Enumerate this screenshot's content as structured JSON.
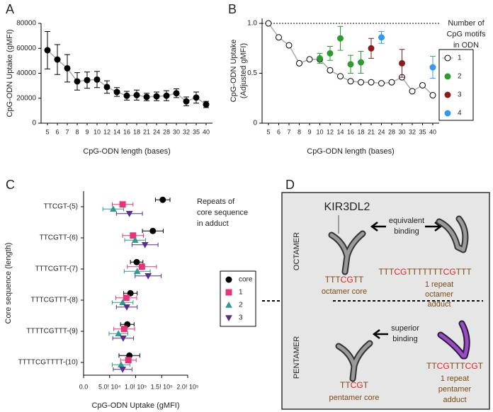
{
  "chart_data": [
    {
      "panel": "A",
      "type": "line",
      "x_label": "CpG-ODN length (bases)",
      "y_label": "CpG-ODN Uptake (gMFI)",
      "categories": [
        "5",
        "6",
        "7",
        "8",
        "9",
        "10",
        "12",
        "14",
        "16",
        "18",
        "21",
        "24",
        "28",
        "30",
        "32",
        "35",
        "40"
      ],
      "values": [
        58500,
        51000,
        44000,
        33500,
        34500,
        35000,
        29000,
        25000,
        22000,
        22500,
        21000,
        21500,
        22000,
        24000,
        17500,
        20500,
        15000
      ],
      "errors": [
        15000,
        12000,
        11000,
        7000,
        6500,
        6500,
        5000,
        3500,
        3500,
        4000,
        3000,
        3500,
        4000,
        3500,
        3500,
        4500,
        2500
      ],
      "color": "#000000",
      "ylim": [
        0,
        80000
      ],
      "yticks": [
        0,
        20000,
        40000,
        60000,
        80000
      ]
    },
    {
      "panel": "B",
      "type": "line",
      "x_label": "CpG-ODN length (bases)",
      "y_label": [
        "CpG-ODN Uptake",
        "(Adjusted gMFI)"
      ],
      "categories": [
        "5",
        "6",
        "7",
        "8",
        "9",
        "10",
        "12",
        "14",
        "16",
        "18",
        "21",
        "24",
        "28",
        "30",
        "32",
        "35",
        "40"
      ],
      "series": [
        {
          "name": "1",
          "color": "#ffffff",
          "line": true,
          "values": [
            1.0,
            0.86,
            0.78,
            0.6,
            0.64,
            0.64,
            0.53,
            0.47,
            0.42,
            0.41,
            0.41,
            0.4,
            0.41,
            0.46,
            0.32,
            0.38,
            0.28
          ]
        },
        {
          "name": "2",
          "color": "#2f9a2f",
          "values": [
            null,
            null,
            null,
            null,
            null,
            0.65,
            0.7,
            0.85,
            0.59,
            0.61,
            null,
            null,
            null,
            null,
            null,
            null,
            null
          ],
          "errors": [
            null,
            null,
            null,
            null,
            null,
            0.05,
            0.07,
            0.12,
            0.09,
            0.11,
            null,
            null,
            null,
            null,
            null,
            null,
            null
          ]
        },
        {
          "name": "3",
          "color": "#8b1a1a",
          "values": [
            null,
            null,
            null,
            null,
            null,
            null,
            null,
            null,
            null,
            null,
            0.75,
            null,
            null,
            0.6,
            null,
            null,
            null
          ],
          "errors": [
            null,
            null,
            null,
            null,
            null,
            null,
            null,
            null,
            null,
            null,
            0.1,
            null,
            null,
            0.14,
            null,
            null,
            null
          ]
        },
        {
          "name": "4",
          "color": "#3399ee",
          "values": [
            null,
            null,
            null,
            null,
            null,
            null,
            null,
            null,
            null,
            null,
            null,
            0.86,
            null,
            null,
            null,
            null,
            0.56
          ],
          "errors": [
            null,
            null,
            null,
            null,
            null,
            null,
            null,
            null,
            null,
            null,
            null,
            0.06,
            null,
            null,
            null,
            null,
            0.11
          ]
        }
      ],
      "legend_title": [
        "Number of",
        "CpG motifs",
        "in ODN"
      ],
      "reference_line": 1,
      "ylim": [
        0,
        1.05
      ],
      "yticks": [
        0,
        0.5,
        {
          "value": 1,
          "label": "1.0"
        }
      ]
    },
    {
      "panel": "C",
      "type": "dot",
      "x_label": "CpG-ODN Uptake (gMFI)",
      "y_label": "Core sequence (length)",
      "categories": [
        "TTCGT-(5)",
        "TTCGTT-(6)",
        "TTTCGTT-(7)",
        "TTTCGTTT-(8)",
        "TTTTCGTTT-(9)",
        "TTTTCGTTTT-(10)"
      ],
      "series": [
        {
          "name": "core",
          "color": "#000000",
          "marker": "circle",
          "values": [
            152000,
            133000,
            102000,
            90000,
            84000,
            88000
          ],
          "errors": [
            14000,
            20000,
            12000,
            13000,
            13000,
            20000
          ]
        },
        {
          "name": "1",
          "color": "#e8337a",
          "marker": "square",
          "values": [
            75000,
            95000,
            112000,
            82000,
            78000,
            86000
          ],
          "errors": [
            20000,
            20000,
            28000,
            20000,
            20000,
            15000
          ]
        },
        {
          "name": "2",
          "color": "#2a9d8f",
          "marker": "triangle-up",
          "values": [
            57000,
            99000,
            103000,
            75000,
            67000,
            72000
          ],
          "errors": [
            20000,
            20000,
            25000,
            20000,
            18000,
            17000
          ]
        },
        {
          "name": "3",
          "color": "#5b2c8f",
          "marker": "triangle-down",
          "values": [
            88000,
            118000,
            124000,
            83000,
            76000,
            75000
          ],
          "errors": [
            25000,
            25000,
            25000,
            20000,
            20000,
            18000
          ]
        }
      ],
      "legend_title": [
        "Repeats of",
        "core sequence",
        "in adduct"
      ],
      "xlim": [
        0,
        200000
      ],
      "xticks": [
        {
          "value": 0,
          "label": "0.0"
        },
        {
          "value": 50000,
          "label": "5.0! 10⁴"
        },
        {
          "value": 100000,
          "label": "1.0! 10⁵"
        },
        {
          "value": 150000,
          "label": "1.5! 10⁵"
        },
        {
          "value": 200000,
          "label": "2.0! 10⁵"
        }
      ]
    }
  ],
  "diagram": {
    "panel": "D",
    "octamer": {
      "label": "OCTAMER",
      "receptor": "KIR3DL2",
      "binding": [
        "equivalent",
        "binding"
      ],
      "core_sequence": [
        "TTT",
        "CG",
        "TT"
      ],
      "core_label": "octamer core",
      "adduct_sequence": [
        "TTT",
        "CG",
        "TTTTTTT",
        "CG",
        "TTT"
      ],
      "adduct_label": [
        "1 repeat",
        "octamer",
        "adduct"
      ]
    },
    "pentamer": {
      "label": "PENTAMER",
      "binding": [
        "superior",
        "binding"
      ],
      "core_sequence": [
        "TT",
        "CG",
        "T"
      ],
      "core_label": "pentamer core",
      "adduct_sequence": [
        "TT",
        "CG",
        "TTT",
        "CG",
        "T"
      ],
      "adduct_label": [
        "1 repeat",
        "pentamer",
        "adduct"
      ]
    }
  }
}
